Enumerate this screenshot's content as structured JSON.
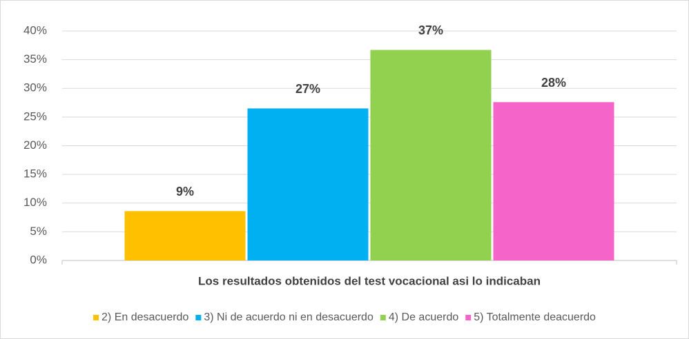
{
  "chart_data": {
    "type": "bar",
    "categories": [
      "Los resultados obtenidos del test vocacional asi lo indicaban"
    ],
    "series": [
      {
        "name": "2) En desacuerdo",
        "color": "#ffc000",
        "values": [
          8.6
        ],
        "value_labels": [
          "9%"
        ]
      },
      {
        "name": "3) Ni de acuerdo ni en desacuerdo",
        "color": "#00b0f0",
        "values": [
          26.5
        ],
        "value_labels": [
          "27%"
        ]
      },
      {
        "name": "4) De acuerdo",
        "color": "#92d050",
        "values": [
          36.7
        ],
        "value_labels": [
          "37%"
        ]
      },
      {
        "name": "5) Totalmente deacuerdo",
        "color": "#f564c8",
        "values": [
          27.6
        ],
        "value_labels": [
          "28%"
        ]
      }
    ],
    "ylim": [
      0,
      40
    ],
    "yticks": [
      {
        "value": 0,
        "label": "0%"
      },
      {
        "value": 5,
        "label": "5%"
      },
      {
        "value": 10,
        "label": "10%"
      },
      {
        "value": 15,
        "label": "15%"
      },
      {
        "value": 20,
        "label": "20%"
      },
      {
        "value": 25,
        "label": "25%"
      },
      {
        "value": 30,
        "label": "30%"
      },
      {
        "value": 35,
        "label": "35%"
      },
      {
        "value": 40,
        "label": "40%"
      }
    ],
    "grid": true,
    "legend": "bottom"
  }
}
